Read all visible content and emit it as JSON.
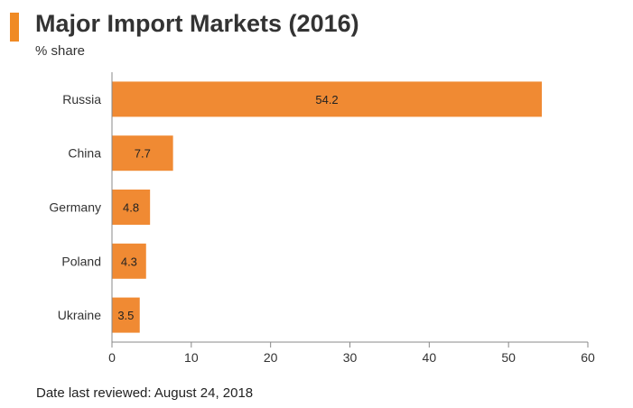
{
  "header": {
    "title": "Major Import Markets (2016)",
    "subtitle": "% share"
  },
  "footer": {
    "note": "Date last reviewed: August 24, 2018"
  },
  "colors": {
    "accent": "#f08a24",
    "bar": "#f08a33",
    "axis": "#888888",
    "text": "#333333"
  },
  "chart_data": {
    "type": "bar",
    "orientation": "horizontal",
    "title": "Major Import Markets (2016)",
    "ylabel": "% share",
    "xlabel": "",
    "categories": [
      "Russia",
      "China",
      "Germany",
      "Poland",
      "Ukraine"
    ],
    "values": [
      54.2,
      7.7,
      4.8,
      4.3,
      3.5
    ],
    "value_labels": [
      "54.2",
      "7.7",
      "4.8",
      "4.3",
      "3.5"
    ],
    "xlim": [
      0,
      60
    ],
    "xticks": [
      0,
      10,
      20,
      30,
      40,
      50,
      60
    ],
    "grid": false,
    "legend": "none"
  }
}
